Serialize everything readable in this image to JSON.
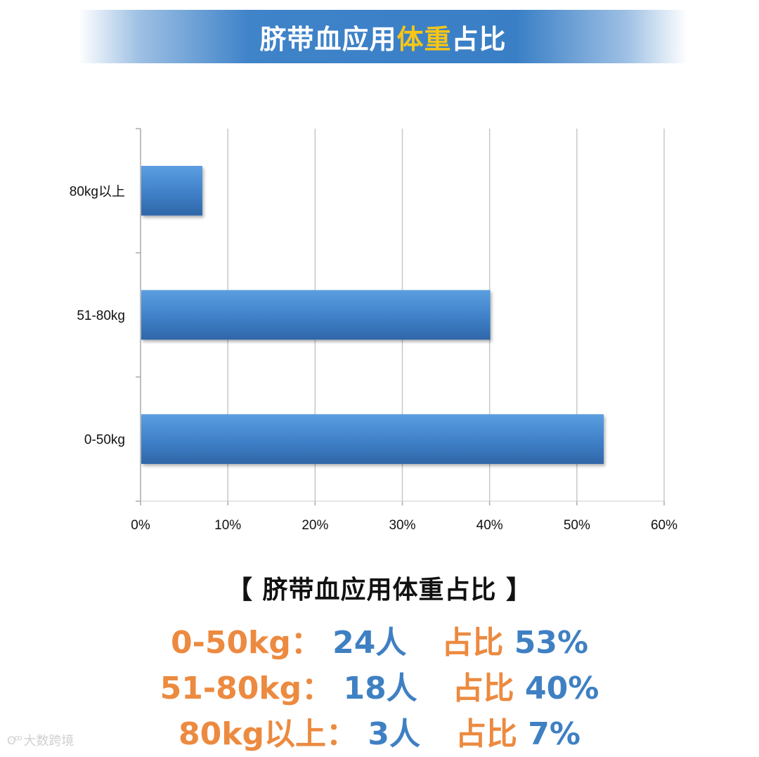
{
  "banner": {
    "title_part1": "脐带血应用",
    "title_highlight": "体重",
    "title_part2": "占比",
    "highlight_color": "#f5c518"
  },
  "chart_data": {
    "type": "bar",
    "orientation": "horizontal",
    "categories": [
      "80kg以上",
      "51-80kg",
      "0-50kg"
    ],
    "values": [
      7,
      40,
      53
    ],
    "x_ticks": [
      "0%",
      "10%",
      "20%",
      "30%",
      "40%",
      "50%",
      "60%"
    ],
    "xlim": [
      0,
      60
    ],
    "grid": true,
    "bar_color": "#3f80c8"
  },
  "summary": {
    "heading": "【 脐带血应用体重占比 】",
    "rows": [
      {
        "label": "0-50kg：",
        "count": "24人",
        "ratio_label": "占比",
        "ratio": "53%"
      },
      {
        "label": "51-80kg：",
        "count": "18人",
        "ratio_label": "占比",
        "ratio": "40%"
      },
      {
        "label": "80kg以上：",
        "count": "3人",
        "ratio_label": "占比",
        "ratio": "7%"
      }
    ],
    "label_color": "#ec8a40",
    "value_color": "#3f80c3"
  },
  "watermark": {
    "icon": "weibo-icon",
    "text": "大数跨境"
  }
}
